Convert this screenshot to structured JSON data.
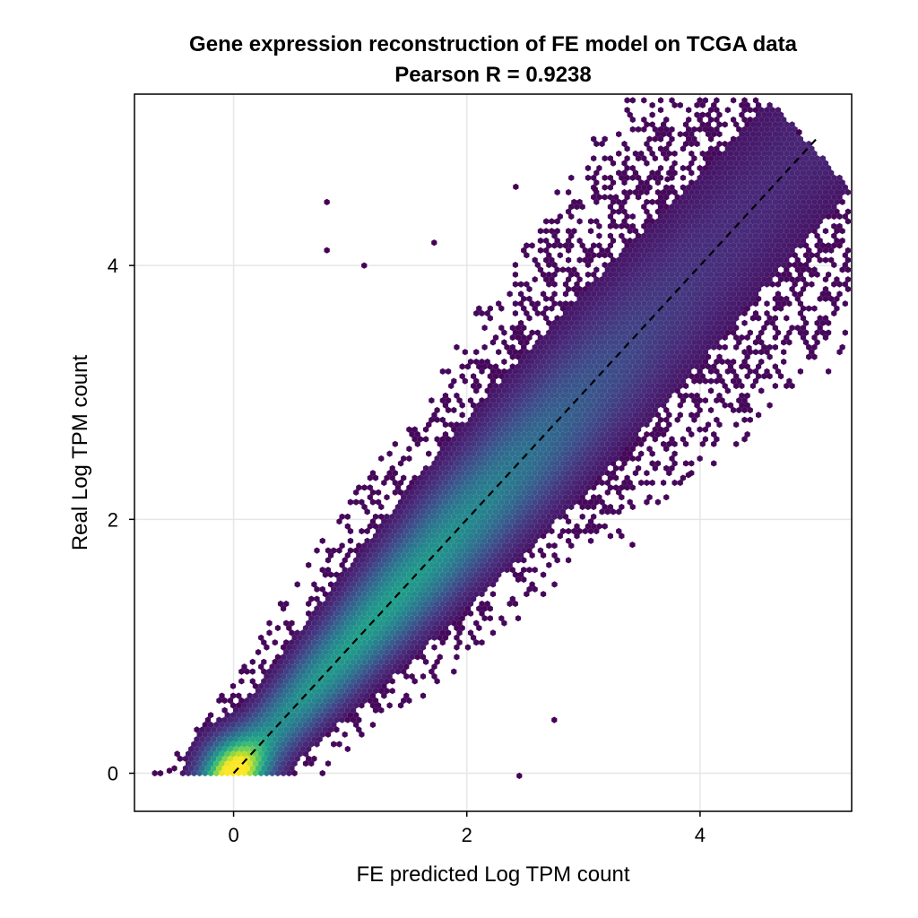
{
  "chart_data": {
    "type": "heatmap",
    "subtype": "hexbin",
    "title": "Gene expression reconstruction of FE model on TCGA data",
    "subtitle": "Pearson R = 0.9238",
    "xlabel": "FE predicted Log TPM count",
    "ylabel": "Real Log TPM count",
    "xlim": [
      -0.85,
      5.3
    ],
    "ylim": [
      -0.3,
      5.35
    ],
    "xticks": [
      0,
      2,
      4
    ],
    "yticks": [
      0,
      2,
      4
    ],
    "xtick_labels": [
      "0",
      "2",
      "4"
    ],
    "ytick_labels": [
      "0",
      "2",
      "4"
    ],
    "grid": true,
    "colormap": "viridis",
    "reference_line": {
      "style": "dashed",
      "color": "#000000",
      "x": [
        0,
        5
      ],
      "y": [
        0,
        5
      ]
    },
    "density_ridge": [
      [
        0,
        0
      ],
      [
        0.5,
        0.5
      ],
      [
        1,
        1
      ],
      [
        1.5,
        1.5
      ],
      [
        2,
        2
      ],
      [
        2.5,
        2.5
      ],
      [
        3,
        3
      ],
      [
        3.5,
        3.5
      ],
      [
        4,
        4
      ],
      [
        4.5,
        4.5
      ]
    ],
    "outlier_points": [
      [
        -0.55,
        0.02
      ],
      [
        0.8,
        4.5
      ],
      [
        0.8,
        4.12
      ],
      [
        1.12,
        4.0
      ],
      [
        2.45,
        -0.02
      ],
      [
        2.42,
        4.62
      ],
      [
        3.9,
        2.35
      ],
      [
        4.42,
        3.35
      ],
      [
        3.42,
        1.8
      ],
      [
        3.1,
        4.6
      ],
      [
        3.72,
        4.68
      ],
      [
        4.85,
        5.05
      ],
      [
        2.75,
        0.42
      ],
      [
        1.72,
        4.18
      ]
    ]
  },
  "colors": {
    "low": "#440154",
    "mid": "#21918c",
    "high": "#fde725",
    "grid": "#e6e6e6",
    "axis": "#000000"
  }
}
